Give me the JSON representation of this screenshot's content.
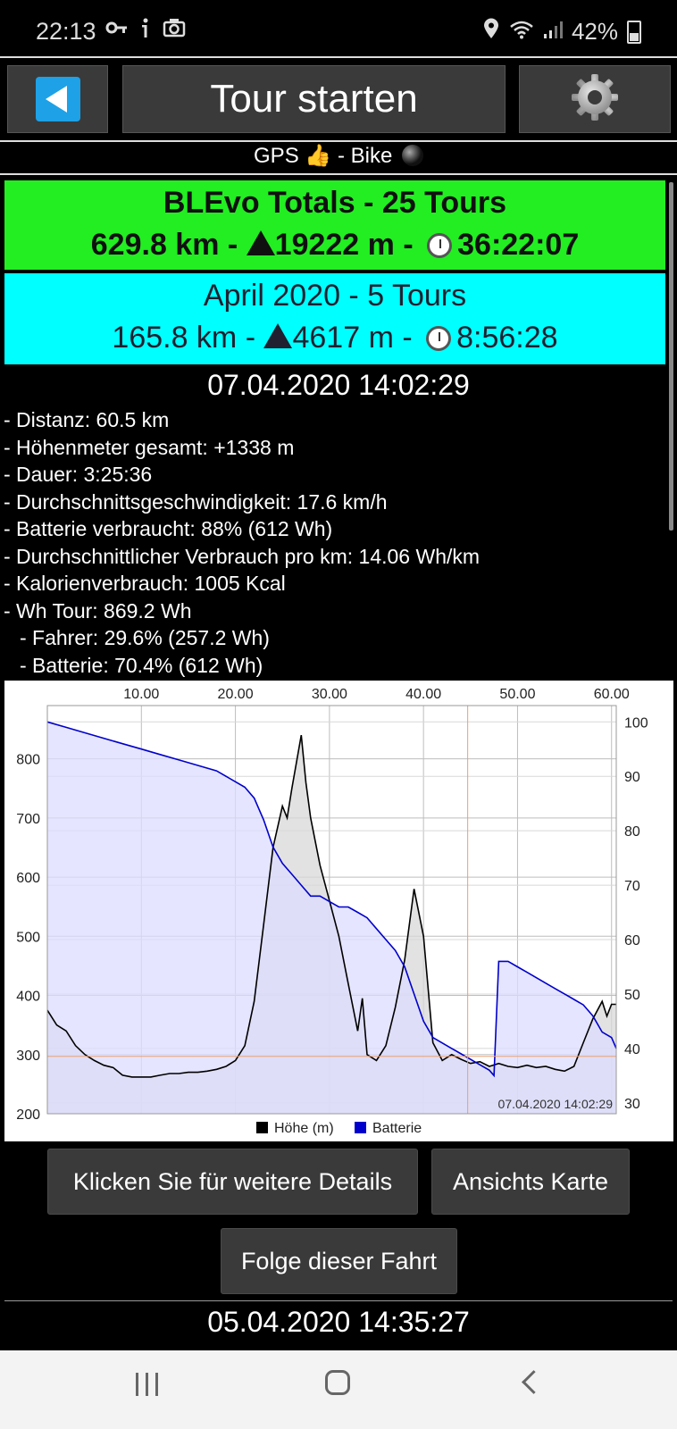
{
  "status_bar": {
    "time": "22:13",
    "battery_percent": "42%"
  },
  "header": {
    "title": "Tour starten"
  },
  "gps_line": {
    "gps_label": "GPS",
    "thumb": "👍",
    "bike_label": "- Bike"
  },
  "totals": {
    "title": "BLEvo Totals - 25 Tours",
    "distance": "629.8 km -",
    "climb": "19222 m -",
    "duration": "36:22:07"
  },
  "month": {
    "title": "April 2020 - 5 Tours",
    "distance": "165.8 km -",
    "climb": "4617 m -",
    "duration": "8:56:28"
  },
  "tour": {
    "date": "07.04.2020 14:02:29",
    "details": [
      "- Distanz: 60.5 km",
      "- Höhenmeter gesamt: +1338 m",
      "- Dauer: 3:25:36",
      "- Durchschnittsgeschwindigkeit: 17.6 km/h",
      "- Batterie verbraucht: 88% (612 Wh)",
      "- Durchschnittlicher Verbrauch pro km: 14.06 Wh/km",
      "- Kalorienverbrauch: 1005 Kcal",
      "- Wh Tour: 869.2 Wh"
    ],
    "sub_details": [
      "- Fahrer: 29.6% (257.2 Wh)",
      "- Batterie: 70.4% (612 Wh)"
    ]
  },
  "chart_data": {
    "type": "area",
    "x_ticks": [
      "10.00",
      "20.00",
      "30.00",
      "40.00",
      "50.00",
      "60.00"
    ],
    "xlim": [
      0,
      60.5
    ],
    "y_left_ticks": [
      "800",
      "700",
      "600",
      "500",
      "400",
      "300",
      "200"
    ],
    "y_left_lim": [
      200,
      890
    ],
    "y_right_ticks": [
      "100",
      "90",
      "80",
      "70",
      "60",
      "50",
      "40",
      "30"
    ],
    "y_right_lim": [
      28,
      103
    ],
    "timestamp_label": "07.04.2020 14:02:29",
    "marker_x": 44.7,
    "reference_y_left": 297,
    "series": [
      {
        "name": "Höhe (m)",
        "axis": "left",
        "color": "#000000",
        "fill": "#d8d8d8",
        "points": [
          [
            0,
            375
          ],
          [
            1,
            350
          ],
          [
            2,
            340
          ],
          [
            3,
            315
          ],
          [
            4,
            300
          ],
          [
            5,
            290
          ],
          [
            6,
            282
          ],
          [
            7,
            278
          ],
          [
            8,
            265
          ],
          [
            9,
            262
          ],
          [
            10,
            262
          ],
          [
            11,
            262
          ],
          [
            12,
            265
          ],
          [
            13,
            268
          ],
          [
            14,
            268
          ],
          [
            15,
            270
          ],
          [
            16,
            270
          ],
          [
            17,
            272
          ],
          [
            18,
            275
          ],
          [
            19,
            280
          ],
          [
            20,
            290
          ],
          [
            21,
            315
          ],
          [
            22,
            390
          ],
          [
            23,
            520
          ],
          [
            24,
            650
          ],
          [
            25,
            720
          ],
          [
            25.5,
            700
          ],
          [
            26,
            750
          ],
          [
            27,
            840
          ],
          [
            27.5,
            760
          ],
          [
            28,
            700
          ],
          [
            29,
            620
          ],
          [
            30,
            560
          ],
          [
            31,
            500
          ],
          [
            32,
            420
          ],
          [
            33,
            340
          ],
          [
            33.5,
            395
          ],
          [
            34,
            300
          ],
          [
            35,
            290
          ],
          [
            36,
            315
          ],
          [
            37,
            380
          ],
          [
            38,
            460
          ],
          [
            39,
            580
          ],
          [
            40,
            500
          ],
          [
            41,
            320
          ],
          [
            42,
            290
          ],
          [
            43,
            300
          ],
          [
            44,
            292
          ],
          [
            45,
            285
          ],
          [
            46,
            288
          ],
          [
            47,
            280
          ],
          [
            48,
            285
          ],
          [
            49,
            280
          ],
          [
            50,
            278
          ],
          [
            51,
            282
          ],
          [
            52,
            278
          ],
          [
            53,
            280
          ],
          [
            54,
            275
          ],
          [
            55,
            272
          ],
          [
            56,
            280
          ],
          [
            57,
            320
          ],
          [
            58,
            360
          ],
          [
            59,
            390
          ],
          [
            59.5,
            365
          ],
          [
            60,
            385
          ],
          [
            60.5,
            385
          ]
        ]
      },
      {
        "name": "Batterie",
        "axis": "right",
        "color": "#0000cc",
        "fill": "#dcdcff",
        "points": [
          [
            0,
            100
          ],
          [
            2,
            99
          ],
          [
            4,
            98
          ],
          [
            6,
            97
          ],
          [
            8,
            96
          ],
          [
            10,
            95
          ],
          [
            12,
            94
          ],
          [
            14,
            93
          ],
          [
            16,
            92
          ],
          [
            18,
            91
          ],
          [
            20,
            89
          ],
          [
            21,
            88
          ],
          [
            22,
            86
          ],
          [
            23,
            82
          ],
          [
            24,
            77
          ],
          [
            25,
            74
          ],
          [
            26,
            72
          ],
          [
            27,
            70
          ],
          [
            28,
            68
          ],
          [
            29,
            68
          ],
          [
            30,
            67
          ],
          [
            31,
            66
          ],
          [
            32,
            66
          ],
          [
            33,
            65
          ],
          [
            34,
            64
          ],
          [
            35,
            62
          ],
          [
            36,
            60
          ],
          [
            37,
            58
          ],
          [
            38,
            55
          ],
          [
            39,
            50
          ],
          [
            40,
            45
          ],
          [
            41,
            42
          ],
          [
            42,
            41
          ],
          [
            43,
            40
          ],
          [
            44,
            39
          ],
          [
            45,
            38
          ],
          [
            46,
            37
          ],
          [
            47,
            36
          ],
          [
            47.5,
            35
          ],
          [
            48,
            56
          ],
          [
            49,
            56
          ],
          [
            50,
            55
          ],
          [
            51,
            54
          ],
          [
            52,
            53
          ],
          [
            53,
            52
          ],
          [
            54,
            51
          ],
          [
            55,
            50
          ],
          [
            56,
            49
          ],
          [
            57,
            48
          ],
          [
            58,
            46
          ],
          [
            59,
            43
          ],
          [
            60,
            42
          ],
          [
            60.5,
            40
          ]
        ]
      }
    ]
  },
  "buttons": {
    "details": "Klicken Sie für weitere Details",
    "map": "Ansichts Karte",
    "follow": "Folge dieser Fahrt"
  },
  "next_tour": {
    "date": "05.04.2020 14:35:27"
  },
  "icons": [
    "key-icon",
    "info-icon",
    "camera-icon",
    "location-icon",
    "wifi-icon",
    "signal-icon",
    "battery-icon",
    "back-icon",
    "gear-icon",
    "ball-icon",
    "triangle-icon",
    "stopwatch-icon"
  ]
}
